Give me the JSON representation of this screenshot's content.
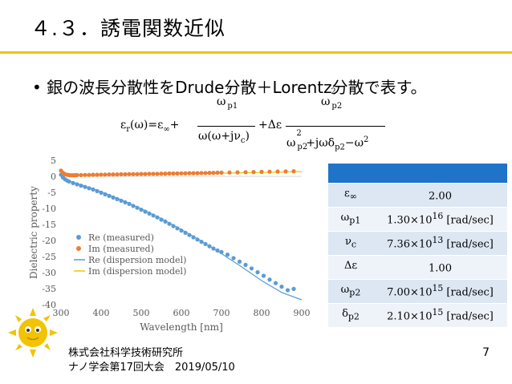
{
  "title": "４.３．誘電関数近似",
  "bullet": "• 銀の波長分散性をDrude分散＋Lorentz分散で表す。",
  "formula": {
    "lhs_eps": "ε",
    "lhs_r": "r",
    "lhs_rest": "(ω)=ε",
    "inf": "∞",
    "plus": "+",
    "num1_w": "ω",
    "num1_sub": "p1",
    "num1_sup": "2",
    "den1": "ω(ω+jν",
    "den1_sub": "c",
    "den1_end": ")",
    "plus_delta": "+Δε",
    "num2_w": "ω",
    "num2_sub": "p2",
    "num2_sup": "2",
    "den2_w": "ω",
    "den2_sub": "p2",
    "den2_sup": "2",
    "den2_mid": "+jωδ",
    "den2_sub2": "p2",
    "den2_end": "−ω",
    "den2_sup2": "2"
  },
  "chart_data": {
    "type": "scatter",
    "xlabel": "Wavelength [nm]",
    "ylabel": "Dielectric property",
    "xlim": [
      300,
      900
    ],
    "ylim": [
      -40,
      5
    ],
    "x_ticks": [
      "300",
      "400",
      "500",
      "600",
      "700",
      "800",
      "900"
    ],
    "y_ticks": [
      "5",
      "0",
      "-5",
      "-10",
      "-15",
      "-20",
      "-25",
      "-30",
      "-35",
      "-40"
    ],
    "grid": false,
    "legend_position": "bottom-left",
    "series": [
      {
        "name": "Re (measured)",
        "kind": "points",
        "color": "#5b9bd5",
        "x": [
          300,
          305,
          310,
          315,
          320,
          330,
          340,
          350,
          360,
          370,
          380,
          390,
          400,
          410,
          420,
          430,
          440,
          450,
          460,
          470,
          480,
          490,
          500,
          510,
          520,
          530,
          540,
          550,
          560,
          570,
          580,
          590,
          600,
          610,
          620,
          630,
          640,
          650,
          660,
          670,
          680,
          690,
          700,
          715,
          730,
          745,
          760,
          775,
          790,
          805,
          820,
          835,
          850,
          865,
          880
        ],
        "values": [
          0.5,
          -0.3,
          -0.9,
          -1.3,
          -1.6,
          -2.1,
          -2.5,
          -2.9,
          -3.3,
          -3.7,
          -4.1,
          -4.6,
          -5.1,
          -5.6,
          -6.1,
          -6.6,
          -7.1,
          -7.6,
          -8.1,
          -8.6,
          -9.2,
          -9.8,
          -10.4,
          -11.0,
          -11.6,
          -12.2,
          -12.8,
          -13.5,
          -14.1,
          -14.8,
          -15.5,
          -16.2,
          -16.9,
          -17.6,
          -18.3,
          -19.0,
          -19.7,
          -20.4,
          -21.1,
          -21.8,
          -22.5,
          -23.1,
          -23.6,
          -24.4,
          -25.5,
          -26.6,
          -27.6,
          -28.7,
          -29.9,
          -31.0,
          -32.2,
          -33.3,
          -34.4,
          -35.5,
          -35.1
        ]
      },
      {
        "name": "Im (measured)",
        "kind": "points",
        "color": "#ed7d31",
        "x": [
          300,
          305,
          310,
          315,
          320,
          325,
          330,
          335,
          340,
          350,
          360,
          370,
          380,
          390,
          400,
          410,
          420,
          430,
          440,
          450,
          460,
          470,
          480,
          490,
          500,
          510,
          520,
          530,
          540,
          550,
          560,
          570,
          580,
          590,
          600,
          610,
          620,
          630,
          640,
          650,
          660,
          670,
          680,
          690,
          700,
          720,
          740,
          760,
          780,
          800,
          820,
          840,
          860,
          880
        ],
        "values": [
          1.8,
          1.1,
          0.7,
          0.5,
          0.4,
          0.35,
          0.35,
          0.35,
          0.4,
          0.4,
          0.45,
          0.45,
          0.5,
          0.5,
          0.55,
          0.55,
          0.6,
          0.6,
          0.6,
          0.65,
          0.65,
          0.7,
          0.7,
          0.7,
          0.75,
          0.75,
          0.8,
          0.8,
          0.8,
          0.85,
          0.85,
          0.9,
          0.9,
          0.9,
          0.95,
          0.95,
          1.0,
          1.0,
          1.0,
          1.05,
          1.05,
          1.1,
          1.1,
          1.15,
          1.15,
          1.2,
          1.25,
          1.3,
          1.35,
          1.4,
          1.45,
          1.5,
          1.55,
          1.6
        ]
      },
      {
        "name": "Re (dispersion model)",
        "kind": "line",
        "color": "#5b9bd5",
        "x": [
          300,
          350,
          400,
          450,
          500,
          550,
          600,
          650,
          700,
          750,
          800,
          850,
          900
        ],
        "values": [
          -0.6,
          -2.6,
          -4.8,
          -7.3,
          -10.1,
          -13.2,
          -16.6,
          -20.2,
          -24.1,
          -28.2,
          -32.5,
          -36.2,
          -38.5
        ]
      },
      {
        "name": "Im (dispersion model)",
        "kind": "line",
        "color": "#f2c300",
        "x": [
          300,
          350,
          400,
          450,
          500,
          550,
          600,
          650,
          700,
          750,
          800,
          850,
          900
        ],
        "values": [
          0.5,
          0.5,
          0.55,
          0.6,
          0.65,
          0.7,
          0.8,
          0.9,
          1.0,
          1.1,
          1.2,
          1.35,
          1.5
        ]
      }
    ]
  },
  "table": {
    "header_color": "#1f73c9",
    "rows": [
      {
        "sym": "ε",
        "sub": "∞",
        "value": "2.00",
        "value_sup": "",
        "value_end": ""
      },
      {
        "sym": "ω",
        "sub": "p1",
        "value": "1.30×10",
        "value_sup": "16",
        "value_end": " [rad/sec]"
      },
      {
        "sym": "ν",
        "sub": "c",
        "value": "7.36×10",
        "value_sup": "13",
        "value_end": " [rad/sec]"
      },
      {
        "sym": "Δε",
        "sub": "",
        "value": "1.00",
        "value_sup": "",
        "value_end": ""
      },
      {
        "sym": "ω",
        "sub": "p2",
        "value": "7.00×10",
        "value_sup": "15",
        "value_end": " [rad/sec]"
      },
      {
        "sym": "δ",
        "sub": "p2",
        "value": "2.10×10",
        "value_sup": "15",
        "value_end": " [rad/sec]"
      }
    ]
  },
  "logo": {
    "name": "sun-logo-icon",
    "color": "#f2c300"
  },
  "footer": {
    "company": "株式会社科学技術研究所",
    "event": "ナノ学会第17回大会　2019/05/10"
  },
  "page_number": "7"
}
